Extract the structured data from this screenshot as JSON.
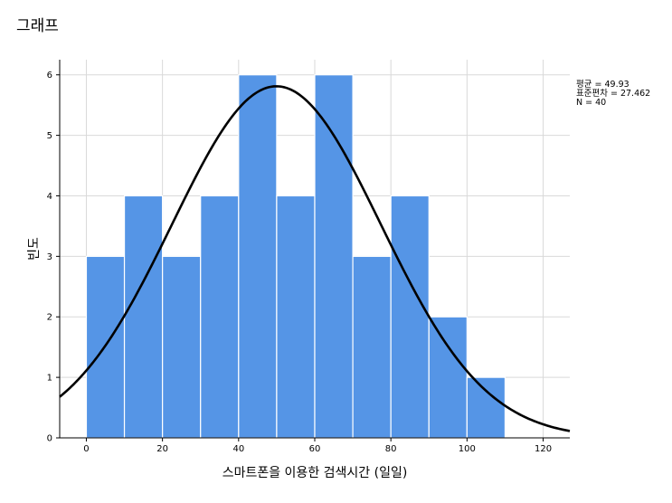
{
  "page": {
    "title": "그래프"
  },
  "chart_data": {
    "type": "bar",
    "subtype": "histogram-with-normal-curve",
    "bins": [
      {
        "start": 0,
        "end": 10,
        "count": 3
      },
      {
        "start": 10,
        "end": 20,
        "count": 4
      },
      {
        "start": 20,
        "end": 30,
        "count": 3
      },
      {
        "start": 30,
        "end": 40,
        "count": 4
      },
      {
        "start": 40,
        "end": 50,
        "count": 6
      },
      {
        "start": 50,
        "end": 60,
        "count": 4
      },
      {
        "start": 60,
        "end": 70,
        "count": 6
      },
      {
        "start": 70,
        "end": 80,
        "count": 3
      },
      {
        "start": 80,
        "end": 90,
        "count": 4
      },
      {
        "start": 90,
        "end": 100,
        "count": 2
      },
      {
        "start": 100,
        "end": 110,
        "count": 1
      }
    ],
    "normal_curve": {
      "mean": 49.93,
      "sd": 27.462,
      "n": 40,
      "bin_width": 10
    },
    "xlabel": "스마트폰을 이용한 검색시간 (일일)",
    "ylabel": "빈도",
    "xlim": [
      -7,
      127
    ],
    "ylim": [
      0,
      6.25
    ],
    "xticks": [
      0,
      20,
      40,
      60,
      80,
      100,
      120
    ],
    "yticks": [
      0,
      1,
      2,
      3,
      4,
      5,
      6
    ],
    "grid": true,
    "bar_color": "#5595E6",
    "curve_color": "#000000",
    "stats_legend": [
      "평균 = 49.93",
      "표준편차 = 27.462",
      "N = 40"
    ]
  }
}
